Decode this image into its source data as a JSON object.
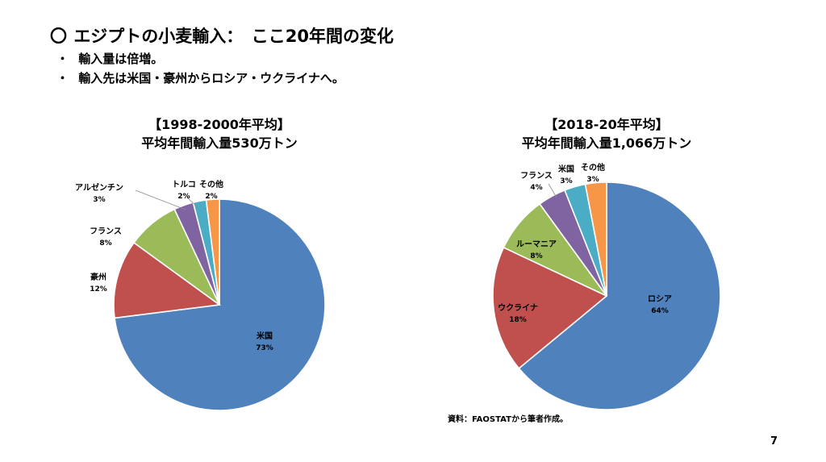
{
  "slide": {
    "title": "エジプトの小麦輸入：　ここ20年間の変化",
    "title_mark": "〇",
    "bullets": [
      "輸入量は倍増。",
      "輸入先は米国・豪州からロシア・ウクライナへ。"
    ],
    "bullet_mark": "・",
    "source": "資料：FAOSTATから筆者作成。",
    "page_number": "7"
  },
  "chart_data": [
    {
      "type": "pie",
      "title": "【1998-2000年平均】",
      "subtitle": "平均年間輸入量530万トン",
      "slices": [
        {
          "label": "米国",
          "value": 73,
          "pct_label": "73%",
          "color": "#4f81bd"
        },
        {
          "label": "豪州",
          "value": 12,
          "pct_label": "12%",
          "color": "#c0504d"
        },
        {
          "label": "フランス",
          "value": 8,
          "pct_label": "8%",
          "color": "#9bbb59"
        },
        {
          "label": "アルゼンチン",
          "value": 3,
          "pct_label": "3%",
          "color": "#8064a2"
        },
        {
          "label": "トルコ",
          "value": 2,
          "pct_label": "2%",
          "color": "#4bacc6"
        },
        {
          "label": "その他",
          "value": 2,
          "pct_label": "2%",
          "color": "#f79646"
        }
      ]
    },
    {
      "type": "pie",
      "title": "【2018-20年平均】",
      "subtitle": "平均年間輸入量1,066万トン",
      "slices": [
        {
          "label": "ロシア",
          "value": 64,
          "pct_label": "64%",
          "color": "#4f81bd"
        },
        {
          "label": "ウクライナ",
          "value": 18,
          "pct_label": "18%",
          "color": "#c0504d"
        },
        {
          "label": "ルーマニア",
          "value": 8,
          "pct_label": "8%",
          "color": "#9bbb59"
        },
        {
          "label": "フランス",
          "value": 4,
          "pct_label": "4%",
          "color": "#8064a2"
        },
        {
          "label": "米国",
          "value": 3,
          "pct_label": "3%",
          "color": "#4bacc6"
        },
        {
          "label": "その他",
          "value": 3,
          "pct_label": "3%",
          "color": "#f79646"
        }
      ]
    }
  ]
}
